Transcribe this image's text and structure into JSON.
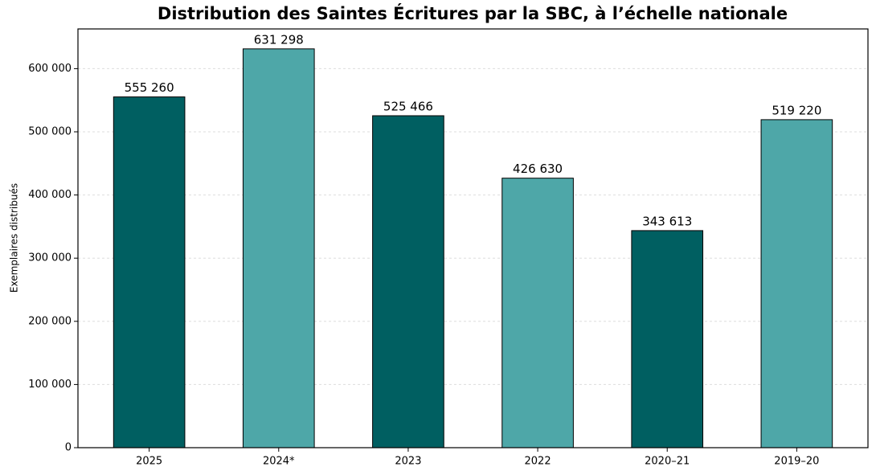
{
  "chart_data": {
    "type": "bar",
    "title": "Distribution des Saintes Écritures par la SBC, à l’échelle nationale",
    "y_label": "Exemplaires distribués",
    "categories": [
      "2025",
      "2024*",
      "2023",
      "2022",
      "2020–21",
      "2019–20"
    ],
    "values": [
      555260,
      631298,
      525466,
      426630,
      343613,
      519220
    ],
    "value_labels": [
      "555 260",
      "631 298",
      "525 466",
      "426 630",
      "343 613",
      "519 220"
    ],
    "colors": [
      "#005f61",
      "#4ea7a8",
      "#005f61",
      "#4ea7a8",
      "#005f61",
      "#4ea7a8"
    ],
    "ylim": [
      0,
      662863
    ],
    "yticks": [
      0,
      {
        "value": 100000,
        "label": "100 000"
      },
      {
        "value": 200000,
        "label": "200 000"
      },
      {
        "value": 300000,
        "label": "300 000"
      },
      {
        "value": 400000,
        "label": "400 000"
      },
      {
        "value": 500000,
        "label": "500 000"
      },
      {
        "value": 600000,
        "label": "600 000"
      }
    ],
    "grid": true
  }
}
